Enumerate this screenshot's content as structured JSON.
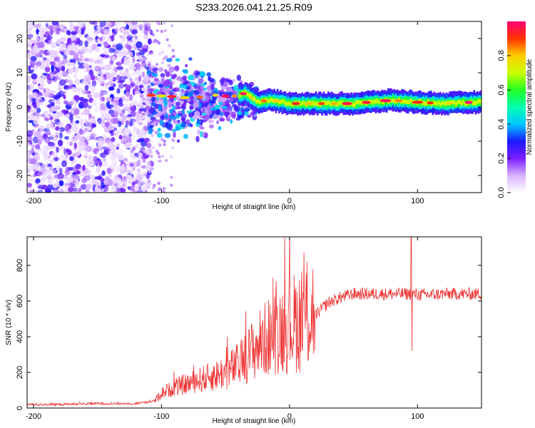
{
  "title": "S233.2026.041.21.25.R09",
  "chart_data": [
    {
      "type": "heatmap",
      "xlabel": "Height of straight line (km)",
      "ylabel": "Frequency (Hz)",
      "xlim": [
        -205,
        150
      ],
      "ylim": [
        -25,
        25
      ],
      "xticks": [
        -200,
        -100,
        0,
        100
      ],
      "yticks": [
        -20,
        -10,
        0,
        10,
        20
      ],
      "tone_track": [
        {
          "x": -110,
          "f": 3.5
        },
        {
          "x": -90,
          "f": 3.0
        },
        {
          "x": -75,
          "f": 2.5
        },
        {
          "x": -60,
          "f": 3.5
        },
        {
          "x": -45,
          "f": 3.0
        },
        {
          "x": -35,
          "f": 4.0
        },
        {
          "x": -25,
          "f": 1.5
        },
        {
          "x": -15,
          "f": 2.0
        },
        {
          "x": 0,
          "f": 1.0
        },
        {
          "x": 20,
          "f": 1.0
        },
        {
          "x": 50,
          "f": 1.0
        },
        {
          "x": 80,
          "f": 2.0
        },
        {
          "x": 95,
          "f": 1.5
        },
        {
          "x": 120,
          "f": 1.0
        },
        {
          "x": 150,
          "f": 1.5
        }
      ],
      "colorbar": {
        "label": "Normalized spectral amplitude",
        "range": [
          0,
          1
        ],
        "ticks": [
          "0.0",
          "0.2",
          "0.4",
          "0.6",
          "0.8"
        ]
      }
    },
    {
      "type": "line",
      "xlabel": "Height of straight line (km)",
      "ylabel": "SNR (10 * v/v)",
      "xlim": [
        -205,
        150
      ],
      "ylim": [
        0,
        960
      ],
      "xticks": [
        -200,
        -100,
        0,
        100
      ],
      "yticks": [
        0,
        200,
        400,
        600,
        800
      ],
      "color": "#ee3333",
      "series": [
        {
          "name": "SNR",
          "x": [
            -205,
            -180,
            -150,
            -120,
            -105,
            -100,
            -90,
            -80,
            -70,
            -60,
            -50,
            -40,
            -35,
            -30,
            -25,
            -20,
            -15,
            -10,
            0,
            10,
            20,
            30,
            40,
            50,
            60,
            70,
            80,
            90,
            94,
            96,
            100,
            110,
            120,
            130,
            140,
            150
          ],
          "y": [
            20,
            20,
            25,
            25,
            40,
            80,
            110,
            130,
            150,
            170,
            190,
            230,
            260,
            300,
            330,
            360,
            380,
            410,
            440,
            470,
            520,
            590,
            620,
            640,
            640,
            640,
            640,
            640,
            640,
            640,
            635,
            635,
            640,
            640,
            640,
            640
          ]
        }
      ],
      "annotations": {
        "spike_x": 95,
        "spike_high": 960,
        "spike_low": 320
      }
    }
  ]
}
